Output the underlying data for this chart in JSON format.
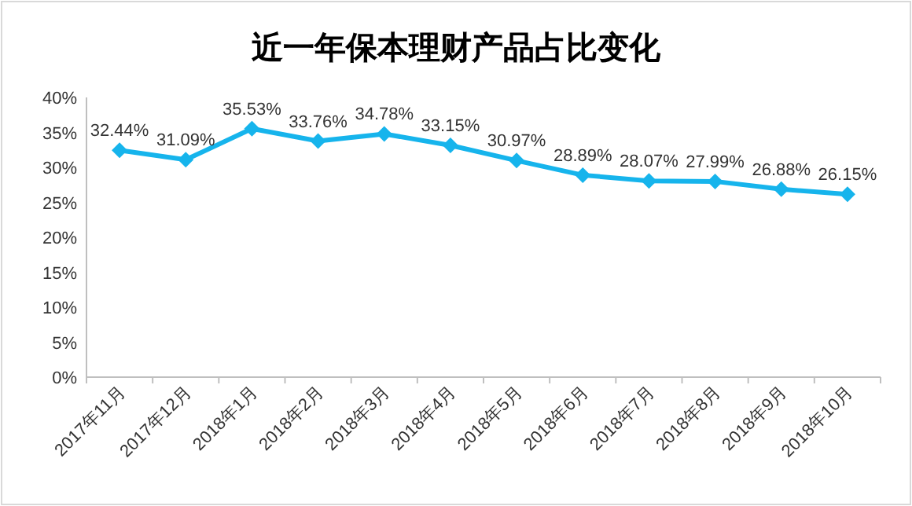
{
  "chart_data": {
    "type": "line",
    "title": "近一年保本理财产品占比变化",
    "categories": [
      "2017年11月",
      "2017年12月",
      "2018年1月",
      "2018年2月",
      "2018年3月",
      "2018年4月",
      "2018年5月",
      "2018年6月",
      "2018年7月",
      "2018年8月",
      "2018年9月",
      "2018年10月"
    ],
    "series": [
      {
        "color": "#16b4ec",
        "values": [
          32.44,
          31.09,
          35.53,
          33.76,
          34.78,
          33.15,
          30.97,
          28.89,
          28.07,
          27.99,
          26.88,
          26.15
        ],
        "value_labels": [
          "32.44%",
          "31.09%",
          "35.53%",
          "33.76%",
          "34.78%",
          "33.15%",
          "30.97%",
          "28.89%",
          "28.07%",
          "27.99%",
          "26.88%",
          "26.15%"
        ]
      }
    ],
    "ylim": [
      0,
      40
    ],
    "yticks": [
      {
        "value": 0,
        "label": "0%"
      },
      {
        "value": 5,
        "label": "5%"
      },
      {
        "value": 10,
        "label": "10%"
      },
      {
        "value": 15,
        "label": "15%"
      },
      {
        "value": 20,
        "label": "20%"
      },
      {
        "value": 25,
        "label": "25%"
      },
      {
        "value": 30,
        "label": "30%"
      },
      {
        "value": 35,
        "label": "35%"
      },
      {
        "value": 40,
        "label": "40%"
      }
    ],
    "marker": "diamond",
    "line_style": "solid",
    "grid": false
  }
}
